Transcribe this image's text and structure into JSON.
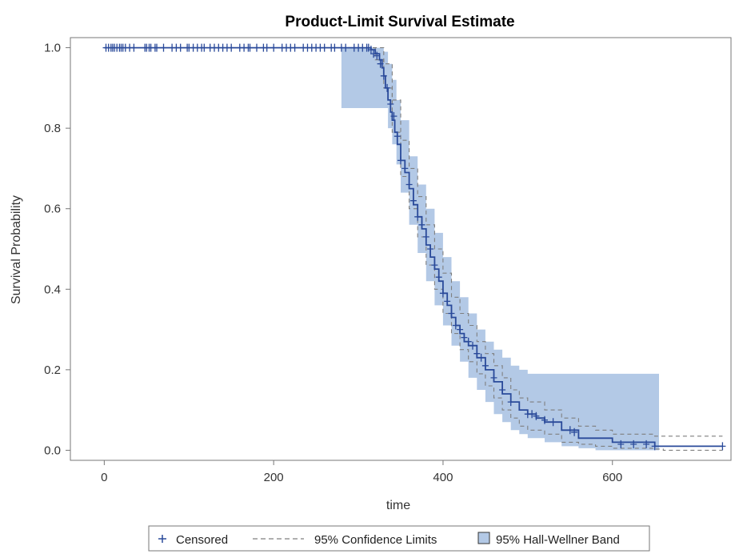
{
  "chart_data": {
    "type": "line",
    "title": "Product-Limit Survival Estimate",
    "xlabel": "time",
    "ylabel": "Survival Probability",
    "xlim": [
      -40,
      740
    ],
    "ylim": [
      -0.025,
      1.025
    ],
    "xticks": [
      0,
      200,
      400,
      600
    ],
    "yticks": [
      0.0,
      0.2,
      0.4,
      0.6,
      0.8,
      1.0
    ],
    "xtick_labels": [
      "0",
      "200",
      "400",
      "600"
    ],
    "ytick_labels": [
      "0.0",
      "0.2",
      "0.4",
      "0.6",
      "0.8",
      "1.0"
    ],
    "grid": false,
    "legend": {
      "placement": "bottom",
      "entries": [
        {
          "key": "censored",
          "label": "Censored",
          "symbol": "+"
        },
        {
          "key": "ci",
          "label": "95% Confidence Limits"
        },
        {
          "key": "hw",
          "label": "95% Hall-Wellner Band"
        }
      ]
    },
    "colors": {
      "survival": "#2a4a9a",
      "band": "#b3c9e6",
      "ci": "#7f7f7f"
    },
    "series": [
      {
        "name": "Survival",
        "x": [
          0,
          280,
          315,
          320,
          325,
          328,
          330,
          332,
          335,
          338,
          340,
          343,
          346,
          350,
          355,
          360,
          365,
          370,
          375,
          380,
          385,
          390,
          395,
          400,
          405,
          410,
          415,
          420,
          425,
          430,
          440,
          450,
          460,
          470,
          480,
          490,
          500,
          510,
          520,
          540,
          560,
          580,
          600,
          650,
          730
        ],
        "y": [
          1.0,
          1.0,
          0.995,
          0.985,
          0.97,
          0.95,
          0.93,
          0.9,
          0.87,
          0.84,
          0.82,
          0.79,
          0.76,
          0.72,
          0.69,
          0.65,
          0.61,
          0.58,
          0.55,
          0.51,
          0.48,
          0.45,
          0.42,
          0.39,
          0.36,
          0.33,
          0.31,
          0.29,
          0.27,
          0.26,
          0.23,
          0.2,
          0.17,
          0.14,
          0.12,
          0.1,
          0.09,
          0.08,
          0.07,
          0.05,
          0.03,
          0.03,
          0.02,
          0.01,
          0.01
        ]
      },
      {
        "name": "95% Confidence Limits (upper)",
        "x": [
          300,
          320,
          330,
          340,
          350,
          360,
          370,
          380,
          390,
          400,
          410,
          420,
          430,
          440,
          450,
          460,
          470,
          480,
          490,
          500,
          520,
          540,
          560,
          580,
          600,
          650,
          730
        ],
        "y": [
          1.0,
          1.0,
          0.96,
          0.87,
          0.77,
          0.7,
          0.63,
          0.56,
          0.5,
          0.44,
          0.38,
          0.34,
          0.31,
          0.27,
          0.24,
          0.21,
          0.18,
          0.15,
          0.13,
          0.12,
          0.1,
          0.08,
          0.06,
          0.05,
          0.04,
          0.035,
          0.035
        ]
      },
      {
        "name": "95% Confidence Limits (lower)",
        "x": [
          300,
          320,
          330,
          340,
          350,
          360,
          370,
          380,
          390,
          400,
          410,
          420,
          430,
          440,
          450,
          460,
          470,
          480,
          490,
          500,
          520,
          540,
          560,
          580,
          600,
          650,
          660,
          730
        ],
        "y": [
          1.0,
          0.97,
          0.9,
          0.79,
          0.68,
          0.6,
          0.53,
          0.46,
          0.4,
          0.34,
          0.29,
          0.25,
          0.22,
          0.19,
          0.16,
          0.13,
          0.1,
          0.08,
          0.06,
          0.05,
          0.04,
          0.02,
          0.015,
          0.01,
          0.005,
          0.003,
          0.0,
          0.0
        ]
      },
      {
        "name": "95% Hall-Wellner Band (upper)",
        "x": [
          280,
          315,
          325,
          330,
          335,
          340,
          345,
          350,
          360,
          370,
          380,
          390,
          400,
          410,
          420,
          430,
          440,
          450,
          460,
          470,
          480,
          490,
          500,
          510,
          655
        ],
        "y": [
          1.0,
          1.0,
          1.0,
          0.99,
          0.96,
          0.92,
          0.87,
          0.82,
          0.73,
          0.66,
          0.6,
          0.54,
          0.48,
          0.42,
          0.38,
          0.34,
          0.3,
          0.27,
          0.25,
          0.23,
          0.21,
          0.2,
          0.19,
          0.19,
          0.19
        ]
      },
      {
        "name": "95% Hall-Wellner Band (lower)",
        "x": [
          280,
          315,
          325,
          330,
          335,
          340,
          345,
          350,
          360,
          370,
          380,
          390,
          400,
          410,
          420,
          430,
          440,
          450,
          460,
          470,
          480,
          490,
          500,
          520,
          540,
          560,
          580,
          600,
          655
        ],
        "y": [
          0.85,
          0.85,
          0.85,
          0.85,
          0.8,
          0.76,
          0.71,
          0.64,
          0.56,
          0.49,
          0.42,
          0.36,
          0.31,
          0.26,
          0.22,
          0.18,
          0.15,
          0.12,
          0.09,
          0.07,
          0.05,
          0.04,
          0.03,
          0.02,
          0.01,
          0.005,
          0.0,
          0.0,
          0.0
        ]
      }
    ],
    "censored": {
      "name": "Censored",
      "x": [
        2,
        5,
        8,
        10,
        12,
        15,
        18,
        20,
        22,
        25,
        30,
        35,
        48,
        50,
        53,
        55,
        60,
        62,
        70,
        80,
        85,
        90,
        98,
        100,
        105,
        110,
        115,
        118,
        125,
        130,
        135,
        140,
        145,
        150,
        160,
        165,
        170,
        172,
        180,
        188,
        192,
        200,
        210,
        215,
        220,
        225,
        235,
        240,
        245,
        250,
        255,
        260,
        268,
        272,
        280,
        285,
        295,
        300,
        305,
        310,
        312,
        315,
        318,
        322,
        326,
        330,
        334,
        338,
        342,
        346,
        350,
        355,
        360,
        365,
        370,
        375,
        380,
        385,
        390,
        395,
        400,
        405,
        410,
        415,
        420,
        425,
        430,
        435,
        440,
        445,
        450,
        460,
        470,
        480,
        500,
        505,
        510,
        520,
        530,
        550,
        555,
        610,
        625,
        640,
        650,
        730
      ],
      "y": [
        1,
        1,
        1,
        1,
        1,
        1,
        1,
        1,
        1,
        1,
        1,
        1,
        1,
        1,
        1,
        1,
        1,
        1,
        1,
        1,
        1,
        1,
        1,
        1,
        1,
        1,
        1,
        1,
        1,
        1,
        1,
        1,
        1,
        1,
        1,
        1,
        1,
        1,
        1,
        1,
        1,
        1,
        1,
        1,
        1,
        1,
        1,
        1,
        1,
        1,
        1,
        1,
        1,
        1,
        1,
        1,
        1,
        1,
        1,
        1,
        1,
        0.995,
        0.985,
        0.98,
        0.96,
        0.93,
        0.9,
        0.86,
        0.83,
        0.78,
        0.72,
        0.7,
        0.66,
        0.62,
        0.58,
        0.56,
        0.53,
        0.5,
        0.46,
        0.43,
        0.39,
        0.37,
        0.34,
        0.31,
        0.3,
        0.28,
        0.27,
        0.26,
        0.24,
        0.23,
        0.21,
        0.18,
        0.15,
        0.12,
        0.09,
        0.09,
        0.085,
        0.075,
        0.07,
        0.05,
        0.045,
        0.015,
        0.015,
        0.015,
        0.01,
        0.01
      ]
    }
  }
}
